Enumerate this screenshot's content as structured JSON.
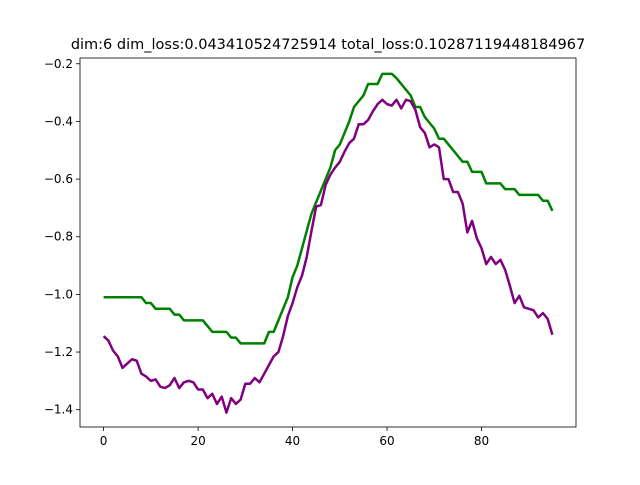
{
  "chart_data": {
    "type": "line",
    "title": "dim:6 dim_loss:0.043410524725914 total_loss:0.10287119448184967",
    "xlabel": "",
    "ylabel": "",
    "xlim": [
      -5,
      100
    ],
    "ylim": [
      -1.46,
      -0.18
    ],
    "xticks": [
      0,
      20,
      40,
      60,
      80
    ],
    "yticks": [
      -1.4,
      -1.2,
      -1.0,
      -0.8,
      -0.6,
      -0.4,
      -0.2
    ],
    "xtick_labels": [
      "0",
      "20",
      "40",
      "60",
      "80"
    ],
    "ytick_labels": [
      "−1.4",
      "−1.2",
      "−1.0",
      "−0.8",
      "−0.6",
      "−0.4",
      "−0.2"
    ],
    "grid": false,
    "legend": "none",
    "x": [
      0,
      1,
      2,
      3,
      4,
      5,
      6,
      7,
      8,
      9,
      10,
      11,
      12,
      13,
      14,
      15,
      16,
      17,
      18,
      19,
      20,
      21,
      22,
      23,
      24,
      25,
      26,
      27,
      28,
      29,
      30,
      31,
      32,
      33,
      34,
      35,
      36,
      37,
      38,
      39,
      40,
      41,
      42,
      43,
      44,
      45,
      46,
      47,
      48,
      49,
      50,
      51,
      52,
      53,
      54,
      55,
      56,
      57,
      58,
      59,
      60,
      61,
      62,
      63,
      64,
      65,
      66,
      67,
      68,
      69,
      70,
      71,
      72,
      73,
      74,
      75,
      76,
      77,
      78,
      79,
      80,
      81,
      82,
      83,
      84,
      85,
      86,
      87,
      88,
      89,
      90,
      91,
      92,
      93,
      94,
      95
    ],
    "series": [
      {
        "color": "#008000",
        "values": [
          -1.01,
          -1.01,
          -1.01,
          -1.01,
          -1.01,
          -1.01,
          -1.01,
          -1.01,
          -1.01,
          -1.03,
          -1.03,
          -1.05,
          -1.05,
          -1.05,
          -1.05,
          -1.07,
          -1.07,
          -1.09,
          -1.09,
          -1.09,
          -1.09,
          -1.09,
          -1.11,
          -1.13,
          -1.13,
          -1.13,
          -1.13,
          -1.15,
          -1.15,
          -1.17,
          -1.17,
          -1.17,
          -1.17,
          -1.17,
          -1.17,
          -1.13,
          -1.13,
          -1.09,
          -1.05,
          -1.01,
          -0.94,
          -0.9,
          -0.84,
          -0.78,
          -0.72,
          -0.68,
          -0.64,
          -0.6,
          -0.56,
          -0.5,
          -0.48,
          -0.44,
          -0.4,
          -0.35,
          -0.33,
          -0.31,
          -0.27,
          -0.27,
          -0.27,
          -0.235,
          -0.235,
          -0.235,
          -0.25,
          -0.27,
          -0.29,
          -0.31,
          -0.35,
          -0.35,
          -0.385,
          -0.405,
          -0.425,
          -0.46,
          -0.46,
          -0.48,
          -0.5,
          -0.52,
          -0.54,
          -0.54,
          -0.575,
          -0.575,
          -0.575,
          -0.615,
          -0.615,
          -0.615,
          -0.615,
          -0.635,
          -0.635,
          -0.635,
          -0.655,
          -0.655,
          -0.655,
          -0.655,
          -0.655,
          -0.675,
          -0.675,
          -0.71
        ]
      },
      {
        "color": "#800080",
        "values": [
          -1.145,
          -1.16,
          -1.195,
          -1.215,
          -1.255,
          -1.24,
          -1.225,
          -1.23,
          -1.275,
          -1.285,
          -1.3,
          -1.295,
          -1.32,
          -1.325,
          -1.315,
          -1.29,
          -1.325,
          -1.305,
          -1.3,
          -1.305,
          -1.33,
          -1.33,
          -1.36,
          -1.345,
          -1.38,
          -1.355,
          -1.41,
          -1.36,
          -1.38,
          -1.365,
          -1.31,
          -1.31,
          -1.29,
          -1.305,
          -1.275,
          -1.245,
          -1.215,
          -1.2,
          -1.145,
          -1.075,
          -1.03,
          -0.975,
          -0.935,
          -0.87,
          -0.78,
          -0.695,
          -0.69,
          -0.62,
          -0.585,
          -0.56,
          -0.54,
          -0.505,
          -0.475,
          -0.46,
          -0.41,
          -0.41,
          -0.395,
          -0.365,
          -0.34,
          -0.325,
          -0.34,
          -0.345,
          -0.325,
          -0.355,
          -0.325,
          -0.33,
          -0.36,
          -0.42,
          -0.44,
          -0.49,
          -0.48,
          -0.49,
          -0.6,
          -0.6,
          -0.645,
          -0.645,
          -0.685,
          -0.785,
          -0.745,
          -0.805,
          -0.84,
          -0.895,
          -0.87,
          -0.895,
          -0.88,
          -0.915,
          -0.97,
          -1.03,
          -1.005,
          -1.045,
          -1.05,
          -1.055,
          -1.08,
          -1.065,
          -1.085,
          -1.14
        ]
      }
    ]
  }
}
